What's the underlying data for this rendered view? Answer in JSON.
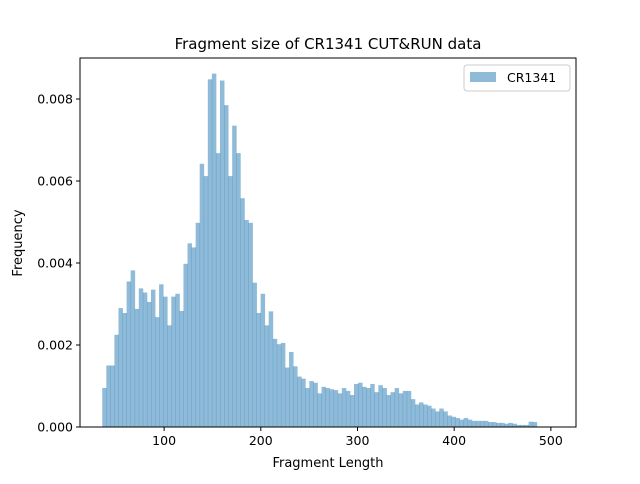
{
  "chart_data": {
    "type": "bar",
    "title": "Fragment size of CR1341 CUT&RUN data",
    "xlabel": "Fragment Length",
    "ylabel": "Frequency",
    "xlim": [
      13,
      526
    ],
    "ylim": [
      0,
      0.009
    ],
    "x_ticks": [
      100,
      200,
      300,
      400,
      500
    ],
    "x_tick_labels": [
      "100",
      "200",
      "300",
      "400",
      "500"
    ],
    "y_ticks": [
      0,
      0.002,
      0.004,
      0.006,
      0.008
    ],
    "y_tick_labels": [
      "0.000",
      "0.002",
      "0.004",
      "0.006",
      "0.008"
    ],
    "legend": {
      "position": "top-right"
    },
    "bin_start": 36,
    "bin_width": 4.2,
    "series": [
      {
        "name": "CR1341",
        "color": "#1f77b4",
        "alpha": 0.5,
        "values": [
          0.00095,
          0.0015,
          0.0015,
          0.00225,
          0.0029,
          0.00278,
          0.00355,
          0.00382,
          0.00288,
          0.00338,
          0.00328,
          0.00305,
          0.00335,
          0.00268,
          0.00348,
          0.00318,
          0.00248,
          0.00318,
          0.00325,
          0.00283,
          0.00398,
          0.00448,
          0.00438,
          0.00498,
          0.00642,
          0.00612,
          0.00848,
          0.00862,
          0.00668,
          0.00845,
          0.00785,
          0.00612,
          0.00735,
          0.00668,
          0.00558,
          0.00505,
          0.00498,
          0.00352,
          0.00278,
          0.00325,
          0.00248,
          0.00282,
          0.00215,
          0.00202,
          0.00205,
          0.00145,
          0.00183,
          0.00148,
          0.00123,
          0.00118,
          0.00095,
          0.00112,
          0.00108,
          0.00082,
          0.00098,
          0.00095,
          0.00092,
          0.0009,
          0.00082,
          0.00095,
          0.00088,
          0.00078,
          0.00105,
          0.00108,
          0.00098,
          0.00095,
          0.00105,
          0.00085,
          0.00102,
          0.00095,
          0.00078,
          0.00085,
          0.00095,
          0.00082,
          0.00088,
          0.00088,
          0.00068,
          0.00055,
          0.0006,
          0.00055,
          0.00052,
          0.00045,
          0.00038,
          0.00045,
          0.00038,
          0.00028,
          0.00025,
          0.00022,
          0.00018,
          0.00022,
          0.00018,
          0.00015,
          0.00015,
          0.00015,
          0.00015,
          0.00012,
          0.00012,
          0.0001,
          0.0001,
          8e-05,
          0.0001,
          8e-05,
          5e-05,
          5e-05,
          5e-05,
          0.00013,
          0.00012
        ]
      }
    ]
  }
}
